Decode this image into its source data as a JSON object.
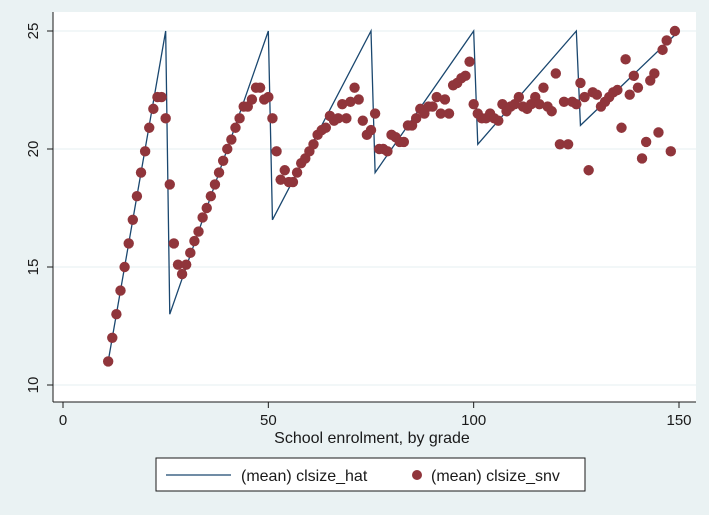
{
  "chart_data": {
    "type": "line+scatter",
    "xlabel": "School enrolment, by grade",
    "ylabel": "",
    "xlim": [
      0,
      150
    ],
    "ylim": [
      10,
      25
    ],
    "xticks": [
      0,
      50,
      100,
      150
    ],
    "yticks": [
      10,
      15,
      20,
      25
    ],
    "grid": "horizontal",
    "legend_position": "bottom",
    "colors": {
      "background": "#eaf2f3",
      "plot_area": "#ffffff",
      "line": "#1a476f",
      "marker": "#90353b",
      "gridline": "#eaf2f3"
    },
    "series": [
      {
        "name": "(mean) clsize_hat",
        "kind": "line",
        "points": [
          [
            11,
            11
          ],
          [
            25,
            25
          ],
          [
            26,
            13
          ],
          [
            50,
            25
          ],
          [
            51,
            17
          ],
          [
            75,
            25
          ],
          [
            76,
            19
          ],
          [
            100,
            25
          ],
          [
            101,
            20.2
          ],
          [
            125,
            25
          ],
          [
            126,
            21
          ],
          [
            150,
            25
          ]
        ]
      },
      {
        "name": "(mean) clsize_snv",
        "kind": "scatter",
        "points": [
          [
            11,
            11
          ],
          [
            12,
            12
          ],
          [
            13,
            13
          ],
          [
            14,
            14
          ],
          [
            15,
            15
          ],
          [
            16,
            16
          ],
          [
            17,
            17
          ],
          [
            18,
            18
          ],
          [
            19,
            19
          ],
          [
            20,
            19.9
          ],
          [
            21,
            20.9
          ],
          [
            22,
            21.7
          ],
          [
            23,
            22.2
          ],
          [
            24,
            22.2
          ],
          [
            25,
            21.3
          ],
          [
            26,
            18.5
          ],
          [
            27,
            16
          ],
          [
            28,
            15.1
          ],
          [
            29,
            14.7
          ],
          [
            30,
            15.1
          ],
          [
            31,
            15.6
          ],
          [
            32,
            16.1
          ],
          [
            33,
            16.5
          ],
          [
            34,
            17.1
          ],
          [
            35,
            17.5
          ],
          [
            36,
            18
          ],
          [
            37,
            18.5
          ],
          [
            38,
            19
          ],
          [
            39,
            19.5
          ],
          [
            40,
            20
          ],
          [
            41,
            20.4
          ],
          [
            42,
            20.9
          ],
          [
            43,
            21.3
          ],
          [
            44,
            21.8
          ],
          [
            45,
            21.8
          ],
          [
            46,
            22.1
          ],
          [
            47,
            22.6
          ],
          [
            48,
            22.6
          ],
          [
            49,
            22.1
          ],
          [
            50,
            22.2
          ],
          [
            51,
            21.3
          ],
          [
            52,
            19.9
          ],
          [
            53,
            18.7
          ],
          [
            54,
            19.1
          ],
          [
            55,
            18.6
          ],
          [
            56,
            18.6
          ],
          [
            57,
            19
          ],
          [
            58,
            19.4
          ],
          [
            59,
            19.6
          ],
          [
            60,
            19.9
          ],
          [
            61,
            20.2
          ],
          [
            62,
            20.6
          ],
          [
            63,
            20.8
          ],
          [
            64,
            20.9
          ],
          [
            65,
            21.4
          ],
          [
            66,
            21.2
          ],
          [
            67,
            21.3
          ],
          [
            68,
            21.9
          ],
          [
            69,
            21.3
          ],
          [
            70,
            22
          ],
          [
            71,
            22.6
          ],
          [
            72,
            22.1
          ],
          [
            73,
            21.2
          ],
          [
            74,
            20.6
          ],
          [
            75,
            20.8
          ],
          [
            76,
            21.5
          ],
          [
            77,
            20
          ],
          [
            78,
            20
          ],
          [
            79,
            19.9
          ],
          [
            80,
            20.6
          ],
          [
            81,
            20.5
          ],
          [
            82,
            20.3
          ],
          [
            83,
            20.3
          ],
          [
            84,
            21
          ],
          [
            85,
            21
          ],
          [
            86,
            21.3
          ],
          [
            87,
            21.7
          ],
          [
            88,
            21.5
          ],
          [
            89,
            21.8
          ],
          [
            90,
            21.8
          ],
          [
            91,
            22.2
          ],
          [
            92,
            21.5
          ],
          [
            93,
            22.1
          ],
          [
            94,
            21.5
          ],
          [
            95,
            22.7
          ],
          [
            96,
            22.8
          ],
          [
            97,
            23
          ],
          [
            98,
            23.1
          ],
          [
            99,
            23.7
          ],
          [
            100,
            21.9
          ],
          [
            101,
            21.5
          ],
          [
            102,
            21.3
          ],
          [
            103,
            21.3
          ],
          [
            104,
            21.5
          ],
          [
            105,
            21.3
          ],
          [
            106,
            21.2
          ],
          [
            107,
            21.9
          ],
          [
            108,
            21.6
          ],
          [
            109,
            21.8
          ],
          [
            110,
            21.9
          ],
          [
            111,
            22.2
          ],
          [
            112,
            21.8
          ],
          [
            113,
            21.7
          ],
          [
            114,
            21.9
          ],
          [
            115,
            22.2
          ],
          [
            116,
            21.9
          ],
          [
            117,
            22.6
          ],
          [
            118,
            21.8
          ],
          [
            119,
            21.6
          ],
          [
            120,
            23.2
          ],
          [
            121,
            20.2
          ],
          [
            122,
            22
          ],
          [
            123,
            20.2
          ],
          [
            124,
            22
          ],
          [
            125,
            21.9
          ],
          [
            126,
            22.8
          ],
          [
            127,
            22.2
          ],
          [
            128,
            19.1
          ],
          [
            129,
            22.4
          ],
          [
            130,
            22.3
          ],
          [
            131,
            21.8
          ],
          [
            132,
            22
          ],
          [
            133,
            22.2
          ],
          [
            134,
            22.4
          ],
          [
            135,
            22.5
          ],
          [
            136,
            20.9
          ],
          [
            137,
            23.8
          ],
          [
            138,
            22.3
          ],
          [
            139,
            23.1
          ],
          [
            140,
            22.6
          ],
          [
            141,
            19.6
          ],
          [
            142,
            20.3
          ],
          [
            143,
            22.9
          ],
          [
            144,
            23.2
          ],
          [
            145,
            20.7
          ],
          [
            146,
            24.2
          ],
          [
            147,
            24.6
          ],
          [
            148,
            19.9
          ],
          [
            149,
            25
          ]
        ]
      }
    ]
  }
}
